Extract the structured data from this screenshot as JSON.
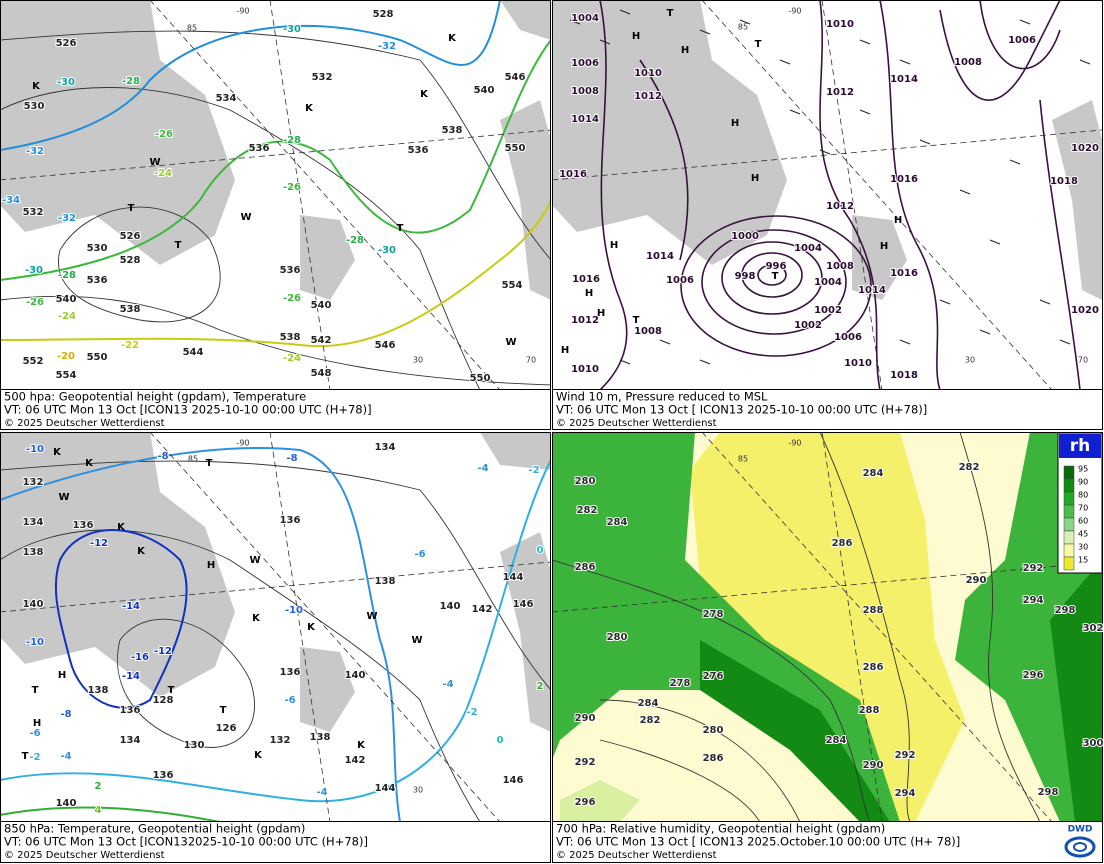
{
  "panels": [
    {
      "caption": [
        "500 hpa: Geopotential height (gpdam), Temperature",
        "VT: 06 UTC Mon  13 Oct [ICON13 2025-10-10 00:00 UTC  (H+78)]",
        "© 2025 Deutscher Wetterdienst"
      ],
      "contour_labels": [
        528,
        526,
        532,
        530,
        534,
        536,
        532,
        526,
        528,
        530,
        536,
        538,
        540,
        544,
        546,
        548,
        550,
        552,
        554,
        536,
        538,
        540,
        546,
        550,
        554,
        550,
        538,
        542,
        536,
        540
      ],
      "temperature_labels": [
        -30,
        -32,
        -30,
        -28,
        -26,
        -24,
        -32,
        -34,
        -32,
        -28,
        -26,
        -30,
        -28,
        -26,
        -24,
        -22,
        -20,
        -26,
        -24,
        -28,
        -30
      ],
      "symbols": [
        "K",
        "K",
        "T",
        "T",
        "W",
        "W",
        "K",
        "T",
        "W",
        "K"
      ]
    },
    {
      "caption": [
        "Wind 10 m, Pressure reduced to MSL",
        "VT: 06 UTC Mon  13 Oct [ ICON13 2025-10-10 00:00 UTC  (H+78)]",
        "© 2025 Deutscher Wetterdienst"
      ],
      "contour_labels": [
        1004,
        1006,
        1008,
        1010,
        1012,
        1014,
        1016,
        1010,
        1008,
        1006,
        1014,
        1012,
        1020,
        1018,
        1016,
        1012,
        1000,
        1004,
        996,
        998,
        1014,
        1006,
        1008,
        1004,
        1016,
        1014,
        1016,
        1002,
        1002,
        1006,
        1010,
        1018,
        1008,
        1010,
        1020,
        1012
      ],
      "symbols": [
        "H",
        "H",
        "T",
        "H",
        "H",
        "H",
        "T",
        "H",
        "H",
        "H",
        "H",
        "T",
        "H",
        "T"
      ]
    },
    {
      "caption": [
        "850 hPa:  Temperature, Geopotential height (gpdam)",
        "VT: 06 UTC Mon  13 Oct [ICON132025-10-10 00:00 UTC  (H+78)]",
        "© 2025 Deutscher Wetterdienst"
      ],
      "contour_labels": [
        134,
        132,
        136,
        134,
        138,
        140,
        136,
        138,
        140,
        142,
        144,
        146,
        138,
        136,
        128,
        126,
        130,
        132,
        134,
        136,
        138,
        140,
        142,
        144,
        146,
        140,
        136
      ],
      "temperature_labels": [
        -10,
        -8,
        -8,
        -4,
        -2,
        -6,
        -10,
        -12,
        -14,
        -16,
        -12,
        -14,
        -10,
        -8,
        -6,
        -4,
        -2,
        0,
        0,
        -2,
        -4,
        -6,
        -4,
        2,
        2,
        4
      ],
      "symbols": [
        "K",
        "K",
        "W",
        "K",
        "K",
        "H",
        "T",
        "W",
        "K",
        "K",
        "W",
        "H",
        "T",
        "T",
        "T",
        "H",
        "T",
        "K",
        "K",
        "W"
      ]
    },
    {
      "caption": [
        "700 hPa:  Relative humidity, Geopotential height (gpdam)",
        "VT: 06 UTC Mon  13 Oct [ ICON13  2025.October.10 00:00 UTC  (H+ 78)]",
        "© 2025 Deutscher Wetterdienst"
      ],
      "contour_labels": [
        284,
        282,
        280,
        282,
        284,
        286,
        286,
        288,
        278,
        280,
        290,
        292,
        294,
        298,
        302,
        296,
        276,
        278,
        282,
        280,
        284,
        286,
        286,
        288,
        284,
        290,
        292,
        290,
        292,
        294,
        296,
        298,
        300
      ]
    }
  ],
  "graticule_labels": [
    -90,
    85,
    -90,
    85,
    -90,
    85,
    -90,
    85,
    30,
    70,
    30,
    70,
    30
  ],
  "legend": {
    "title": "rh",
    "levels": [
      95,
      90,
      80,
      70,
      60,
      45,
      30,
      15
    ]
  },
  "logo": "DWD"
}
